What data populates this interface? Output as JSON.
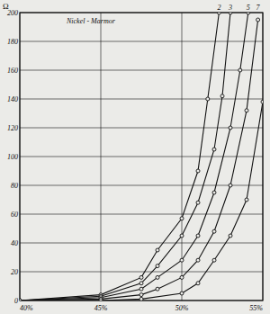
{
  "chart_data": {
    "type": "line",
    "title": "Nickel - Marmor",
    "y_label": "Ω",
    "xlim": [
      40,
      55
    ],
    "ylim": [
      0,
      200
    ],
    "xticks": [
      {
        "value": 40,
        "label": "40%"
      },
      {
        "value": 45,
        "label": "45%"
      },
      {
        "value": 50,
        "label": "50%"
      },
      {
        "value": 55,
        "label": "55%"
      }
    ],
    "yticks": [
      0,
      20,
      40,
      60,
      80,
      100,
      120,
      140,
      160,
      180,
      200
    ],
    "grid": true,
    "marker": "circle",
    "color": "#111111",
    "series": [
      {
        "name": "2",
        "x": [
          40,
          45,
          47.5,
          48.5,
          50,
          51,
          51.6,
          52.3
        ],
        "values": [
          0,
          4,
          16,
          35,
          57,
          90,
          140,
          200
        ]
      },
      {
        "name": "3",
        "x": [
          40,
          45,
          47.5,
          48.5,
          50,
          51,
          52,
          52.5,
          53
        ],
        "values": [
          0,
          3,
          12,
          24,
          45,
          68,
          105,
          142,
          200
        ]
      },
      {
        "name": "5",
        "x": [
          40,
          45,
          47.5,
          48.5,
          50,
          51,
          52,
          53,
          53.6,
          54.1
        ],
        "values": [
          0,
          2,
          8,
          16,
          28,
          45,
          75,
          120,
          160,
          200
        ]
      },
      {
        "name": "7",
        "x": [
          40,
          45,
          47.5,
          48.5,
          50,
          51,
          52,
          53,
          54,
          54.7
        ],
        "values": [
          0,
          1,
          4,
          8,
          16,
          28,
          48,
          80,
          132,
          195
        ]
      },
      {
        "x": [
          40,
          45,
          47.5,
          50,
          51,
          52,
          53,
          54,
          55
        ],
        "values": [
          0,
          0,
          1,
          5,
          12,
          28,
          45,
          70,
          138
        ]
      }
    ]
  }
}
